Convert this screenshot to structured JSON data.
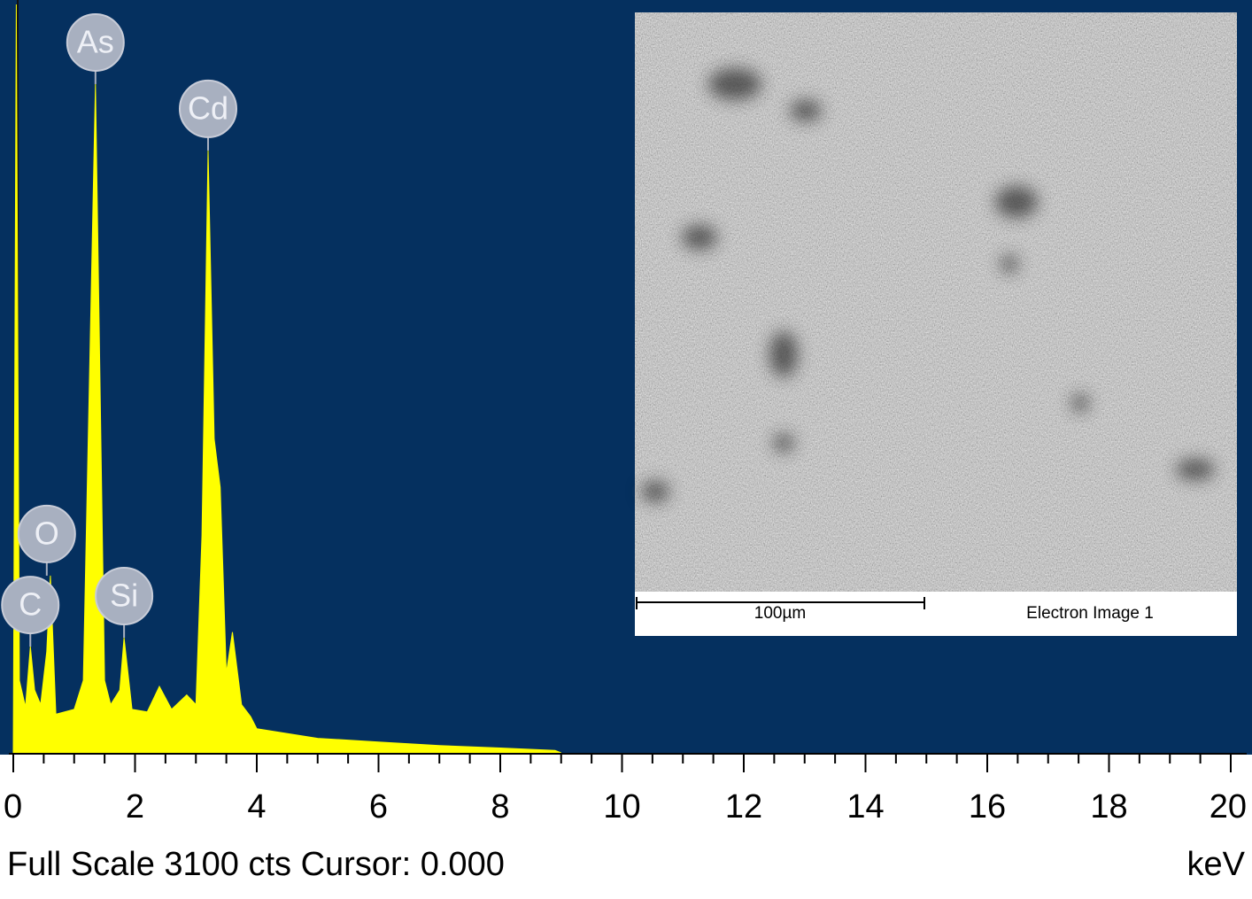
{
  "chart_data": {
    "type": "area",
    "x": [
      0,
      0.05,
      0.1,
      0.2,
      0.28,
      0.35,
      0.45,
      0.55,
      0.61,
      0.7,
      1.0,
      1.15,
      1.35,
      1.5,
      1.6,
      1.75,
      1.82,
      1.95,
      2.2,
      2.4,
      2.6,
      2.85,
      3.0,
      3.1,
      3.2,
      3.3,
      3.4,
      3.5,
      3.6,
      3.75,
      3.9,
      4.0,
      5.0,
      6.0,
      7.0,
      8.0,
      8.9,
      9.0
    ],
    "values": [
      0,
      3100,
      300,
      190,
      440,
      260,
      200,
      420,
      734,
      160,
      180,
      300,
      2770,
      300,
      200,
      260,
      477,
      180,
      170,
      275,
      180,
      240,
      200,
      900,
      2495,
      1300,
      1100,
      330,
      500,
      200,
      150,
      100,
      60,
      45,
      30,
      20,
      10,
      0
    ],
    "color": "#ffff00",
    "background": "#05305f",
    "xlim": [
      0,
      20
    ],
    "ylim": [
      0,
      3100
    ],
    "xticks": [
      0,
      2,
      4,
      6,
      8,
      10,
      12,
      14,
      16,
      18,
      20
    ],
    "minor_xticks": [
      0.5,
      1,
      1.5,
      2.5,
      3,
      3.5,
      4.5,
      5,
      5.5,
      6.5,
      7,
      7.5,
      8.5,
      9,
      9.5,
      10.5,
      11,
      11.5,
      12.5,
      13,
      13.5,
      14.5,
      15,
      15.5,
      16.5,
      17,
      17.5,
      18.5,
      19,
      19.5
    ],
    "peak_labels": [
      {
        "text": "C",
        "x": 0.28,
        "y": 440
      },
      {
        "text": "O",
        "x": 0.55,
        "y": 734
      },
      {
        "text": "As",
        "x": 1.35,
        "y": 2770
      },
      {
        "text": "Si",
        "x": 1.82,
        "y": 477
      },
      {
        "text": "Cd",
        "x": 3.2,
        "y": 2495
      }
    ],
    "footer": "Full Scale 3100 cts Cursor: 0.000",
    "x_unit": "keV"
  },
  "inset": {
    "scale_bar": "100µm",
    "caption": "Electron Image 1"
  }
}
